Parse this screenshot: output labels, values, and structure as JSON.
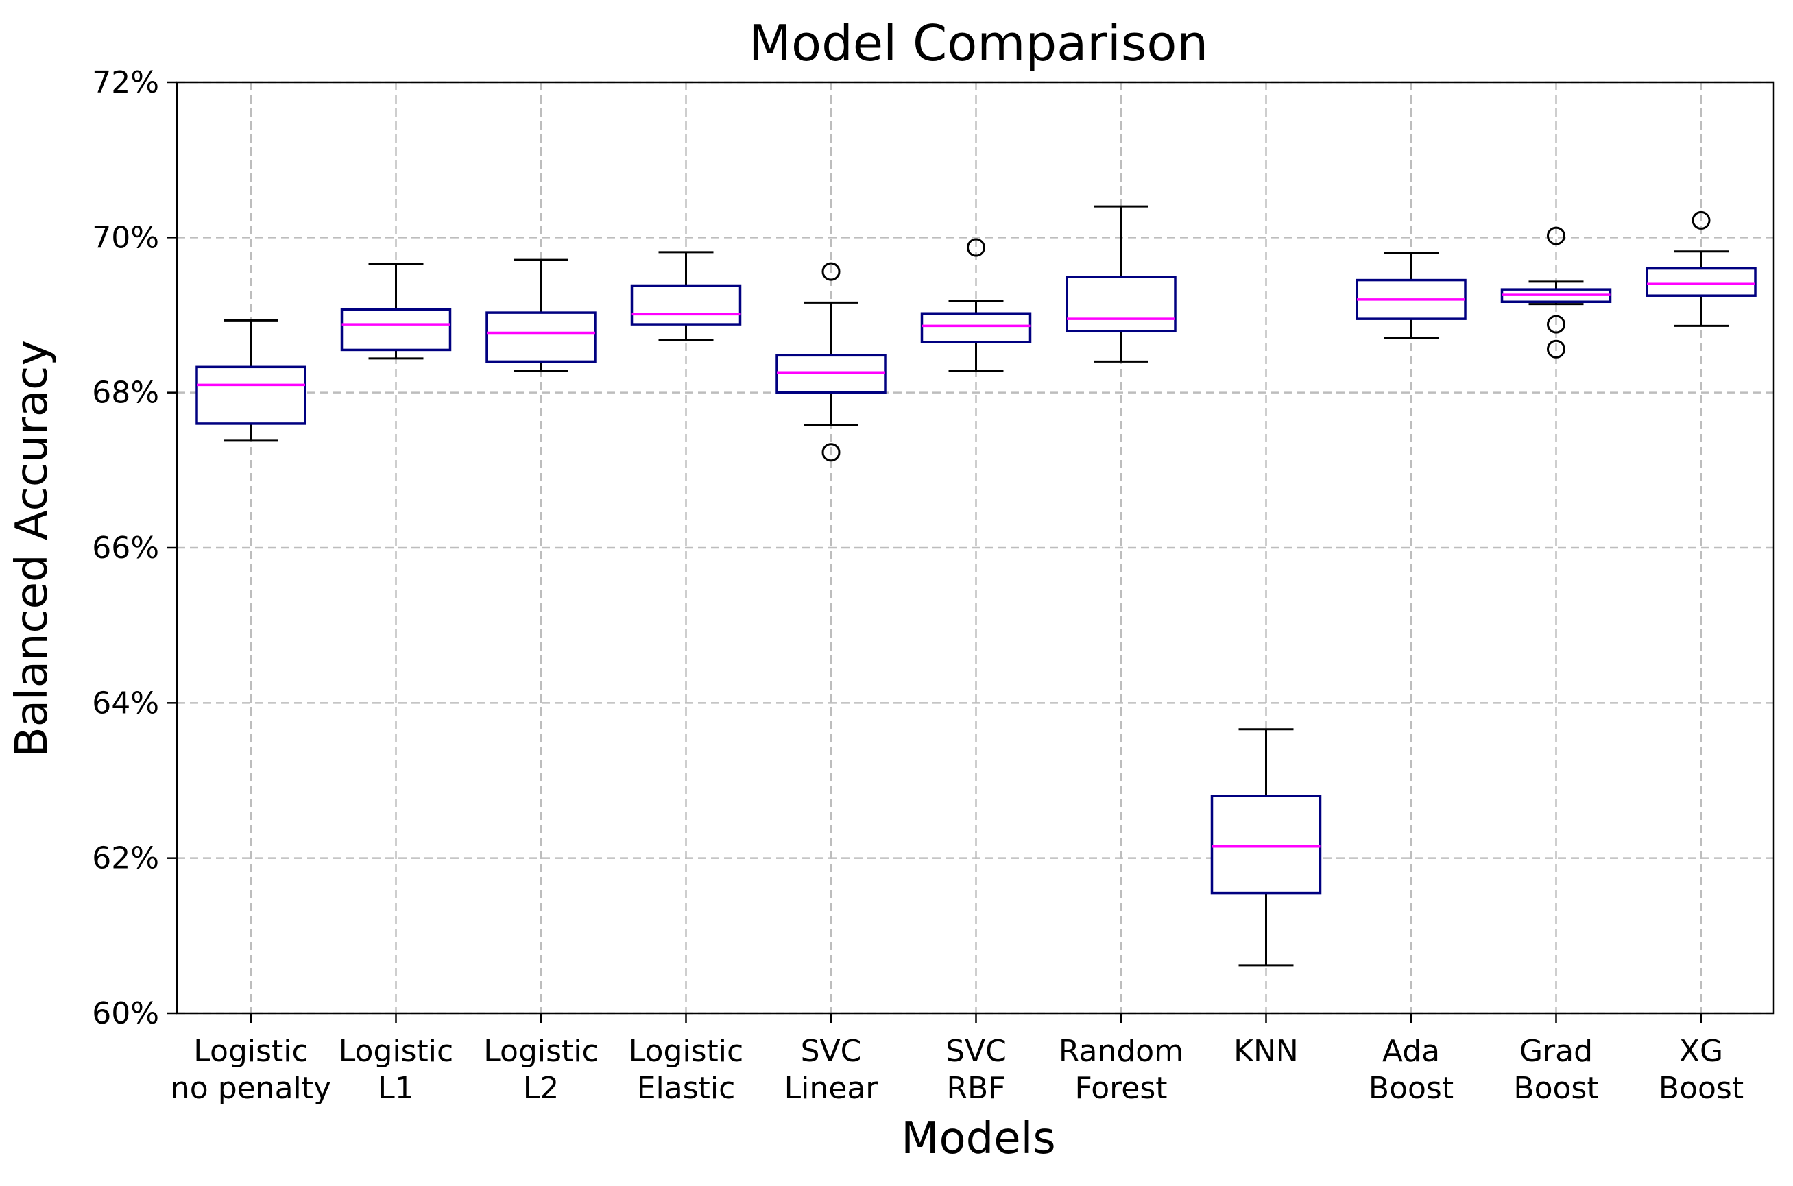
{
  "chart_data": {
    "type": "box",
    "title": "Model Comparison",
    "xlabel": "Models",
    "ylabel": "Balanced Accuracy",
    "ylim": [
      60,
      72
    ],
    "y_ticks": [
      60,
      62,
      64,
      66,
      68,
      70,
      72
    ],
    "y_tick_suffix": "%",
    "grid": true,
    "colors": {
      "box": "#000080",
      "median": "#ff00ff",
      "whisker": "#000000",
      "grid": "#bdbdbd"
    },
    "categories": [
      {
        "label": [
          "Logistic",
          "no penalty"
        ],
        "whisker_low": 67.38,
        "q1": 67.6,
        "median": 68.1,
        "q3": 68.33,
        "whisker_high": 68.93,
        "fliers": []
      },
      {
        "label": [
          "Logistic",
          "L1"
        ],
        "whisker_low": 68.44,
        "q1": 68.55,
        "median": 68.88,
        "q3": 69.07,
        "whisker_high": 69.66,
        "fliers": []
      },
      {
        "label": [
          "Logistic",
          "L2"
        ],
        "whisker_low": 68.28,
        "q1": 68.4,
        "median": 68.77,
        "q3": 69.03,
        "whisker_high": 69.71,
        "fliers": []
      },
      {
        "label": [
          "Logistic",
          "Elastic"
        ],
        "whisker_low": 68.68,
        "q1": 68.88,
        "median": 69.01,
        "q3": 69.38,
        "whisker_high": 69.81,
        "fliers": []
      },
      {
        "label": [
          "SVC",
          "Linear"
        ],
        "whisker_low": 67.58,
        "q1": 68.0,
        "median": 68.26,
        "q3": 68.48,
        "whisker_high": 69.16,
        "fliers": [
          69.56,
          67.23
        ]
      },
      {
        "label": [
          "SVC",
          "RBF"
        ],
        "whisker_low": 68.28,
        "q1": 68.65,
        "median": 68.86,
        "q3": 69.02,
        "whisker_high": 69.18,
        "fliers": [
          69.87
        ]
      },
      {
        "label": [
          "Random",
          "Forest"
        ],
        "whisker_low": 68.4,
        "q1": 68.79,
        "median": 68.95,
        "q3": 69.49,
        "whisker_high": 70.4,
        "fliers": []
      },
      {
        "label": [
          "KNN"
        ],
        "whisker_low": 60.62,
        "q1": 61.55,
        "median": 62.15,
        "q3": 62.8,
        "whisker_high": 63.66,
        "fliers": []
      },
      {
        "label": [
          "Ada",
          "Boost"
        ],
        "whisker_low": 68.7,
        "q1": 68.95,
        "median": 69.2,
        "q3": 69.45,
        "whisker_high": 69.8,
        "fliers": []
      },
      {
        "label": [
          "Grad",
          "Boost"
        ],
        "whisker_low": 69.14,
        "q1": 69.17,
        "median": 69.26,
        "q3": 69.33,
        "whisker_high": 69.43,
        "fliers": [
          70.02,
          68.88,
          68.56
        ]
      },
      {
        "label": [
          "XG",
          "Boost"
        ],
        "whisker_low": 68.86,
        "q1": 69.25,
        "median": 69.4,
        "q3": 69.6,
        "whisker_high": 69.82,
        "fliers": [
          70.22
        ]
      }
    ]
  }
}
